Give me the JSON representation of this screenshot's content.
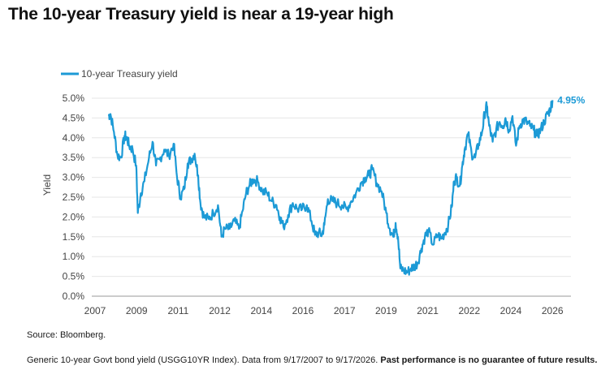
{
  "title": "The 10-year Treasury yield is near a 19-year high",
  "source": "Source: Bloomberg.",
  "note": "Generic 10-year Govt bond yield (USGG10YR Index). Data from 9/17/2007 to 9/17/2026.",
  "note_bold": "Past performance is no guarantee of future results.",
  "colors": {
    "series": "#1c9ad6",
    "grid": "#e6e6e6",
    "axis": "#999999"
  },
  "chart_data": {
    "type": "line",
    "ylabel": "Yield",
    "xlabel": "",
    "ylim": [
      0,
      5
    ],
    "xlim": [
      2007,
      2027.5
    ],
    "legend": "top-left",
    "grid": true,
    "y_ticks": [
      "0.0%",
      "0.5%",
      "1.0%",
      "1.5%",
      "2.0%",
      "2.5%",
      "3.0%",
      "3.5%",
      "4.0%",
      "4.5%",
      "5.0%"
    ],
    "x_ticks": [
      "2007",
      "2009",
      "2011",
      "2012",
      "2014",
      "2016",
      "2017",
      "2019",
      "2021",
      "2022",
      "2024",
      "2026"
    ],
    "end_label": "4.95%",
    "series": [
      {
        "name": "10-year Treasury yield",
        "x": [
          2007.71,
          2007.8,
          2007.95,
          2008.1,
          2008.25,
          2008.4,
          2008.5,
          2008.6,
          2008.75,
          2008.9,
          2008.97,
          2009.1,
          2009.25,
          2009.45,
          2009.6,
          2009.75,
          2009.9,
          2010.1,
          2010.3,
          2010.5,
          2010.65,
          2010.8,
          2010.95,
          2011.1,
          2011.25,
          2011.4,
          2011.55,
          2011.65,
          2011.8,
          2012.0,
          2012.2,
          2012.4,
          2012.55,
          2012.7,
          2012.9,
          2013.1,
          2013.3,
          2013.45,
          2013.6,
          2013.75,
          2013.9,
          2014.1,
          2014.3,
          2014.5,
          2014.7,
          2014.9,
          2015.05,
          2015.2,
          2015.4,
          2015.6,
          2015.8,
          2016.0,
          2016.2,
          2016.4,
          2016.55,
          2016.7,
          2016.85,
          2016.95,
          2017.1,
          2017.3,
          2017.5,
          2017.7,
          2017.9,
          2018.1,
          2018.3,
          2018.5,
          2018.7,
          2018.85,
          2019.0,
          2019.2,
          2019.4,
          2019.6,
          2019.75,
          2019.9,
          2020.0,
          2020.1,
          2020.2,
          2020.35,
          2020.5,
          2020.65,
          2020.8,
          2020.95,
          2021.1,
          2021.25,
          2021.4,
          2021.6,
          2021.8,
          2021.95,
          2022.1,
          2022.25,
          2022.4,
          2022.5,
          2022.6,
          2022.75,
          2022.85,
          2022.95,
          2023.1,
          2023.25,
          2023.4,
          2023.55,
          2023.7,
          2023.8,
          2023.9,
          2024.0,
          2024.15,
          2024.3,
          2024.45,
          2024.6,
          2024.7,
          2024.85,
          2025.0,
          2025.15,
          2025.3,
          2025.45,
          2025.6,
          2025.75,
          2025.9,
          2026.05,
          2026.2,
          2026.35,
          2026.5,
          2026.6,
          2026.71
        ],
        "values": [
          4.55,
          4.6,
          4.15,
          3.55,
          3.5,
          4.05,
          4.0,
          3.8,
          3.7,
          3.3,
          2.1,
          2.6,
          2.9,
          3.5,
          3.9,
          3.3,
          3.45,
          3.7,
          3.55,
          3.85,
          3.0,
          2.5,
          2.7,
          3.35,
          3.45,
          3.6,
          3.05,
          2.35,
          2.0,
          1.95,
          2.1,
          2.3,
          1.5,
          1.7,
          1.7,
          1.9,
          1.7,
          2.15,
          2.6,
          2.8,
          2.95,
          2.9,
          2.65,
          2.6,
          2.4,
          2.3,
          2.0,
          1.75,
          2.05,
          2.35,
          2.2,
          2.2,
          2.3,
          1.9,
          1.55,
          1.6,
          1.55,
          1.8,
          2.45,
          2.4,
          2.35,
          2.3,
          2.2,
          2.4,
          2.6,
          2.85,
          3.0,
          3.05,
          3.2,
          2.85,
          2.65,
          2.1,
          1.7,
          1.5,
          1.85,
          1.5,
          0.7,
          0.65,
          0.6,
          0.7,
          0.75,
          0.85,
          1.2,
          1.5,
          1.65,
          1.3,
          1.55,
          1.45,
          1.6,
          1.8,
          2.25,
          2.9,
          3.0,
          2.8,
          3.3,
          3.7,
          4.1,
          3.6,
          3.5,
          3.85,
          4.15,
          4.6,
          4.8,
          4.3,
          3.9,
          4.2,
          4.4,
          4.3,
          4.5,
          4.2,
          4.55,
          3.8,
          4.3,
          4.45,
          4.4,
          4.3,
          4.2,
          4.05,
          4.2,
          4.4,
          4.6,
          4.7,
          4.95
        ]
      }
    ]
  }
}
